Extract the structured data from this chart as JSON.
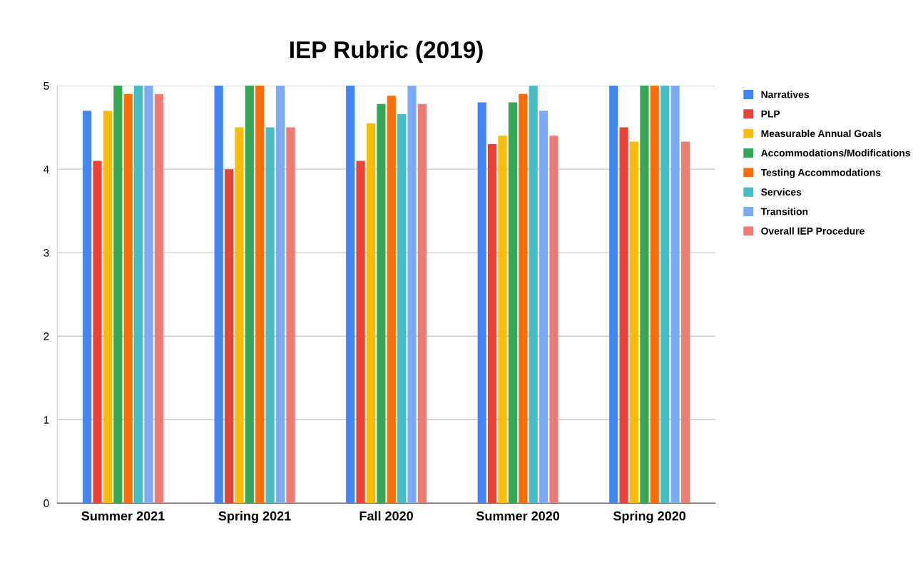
{
  "chart_data": {
    "type": "bar",
    "title": "IEP Rubric (2019)",
    "categories": [
      "Summer 2021",
      "Spring 2021",
      "Fall 2020",
      "Summer 2020",
      "Spring 2020"
    ],
    "series": [
      {
        "name": "Narratives",
        "color": "#4285f4",
        "values": [
          4.7,
          5,
          5,
          4.8,
          5
        ]
      },
      {
        "name": "PLP",
        "color": "#ea4335",
        "values": [
          4.1,
          4.0,
          4.1,
          4.3,
          4.5
        ]
      },
      {
        "name": "Measurable Annual Goals",
        "color": "#fbbc04",
        "values": [
          4.7,
          4.5,
          4.55,
          4.4,
          4.33
        ]
      },
      {
        "name": "Accommodations/Modifications",
        "color": "#34a853",
        "values": [
          5,
          5,
          4.78,
          4.8,
          5
        ]
      },
      {
        "name": "Testing Accommodations",
        "color": "#ff6d01",
        "values": [
          4.9,
          5,
          4.88,
          4.9,
          5
        ]
      },
      {
        "name": "Services",
        "color": "#46bdc6",
        "values": [
          5,
          4.5,
          4.66,
          5,
          5
        ]
      },
      {
        "name": "Transition",
        "color": "#7baaf7",
        "values": [
          5,
          5,
          5,
          4.7,
          5
        ]
      },
      {
        "name": "Overall IEP Procedure",
        "color": "#f07b72",
        "values": [
          4.9,
          4.5,
          4.78,
          4.4,
          4.33
        ]
      }
    ],
    "ylim": [
      0,
      5
    ],
    "yticks": [
      0,
      1,
      2,
      3,
      4,
      5
    ],
    "grid": "y",
    "legend": "top right"
  }
}
